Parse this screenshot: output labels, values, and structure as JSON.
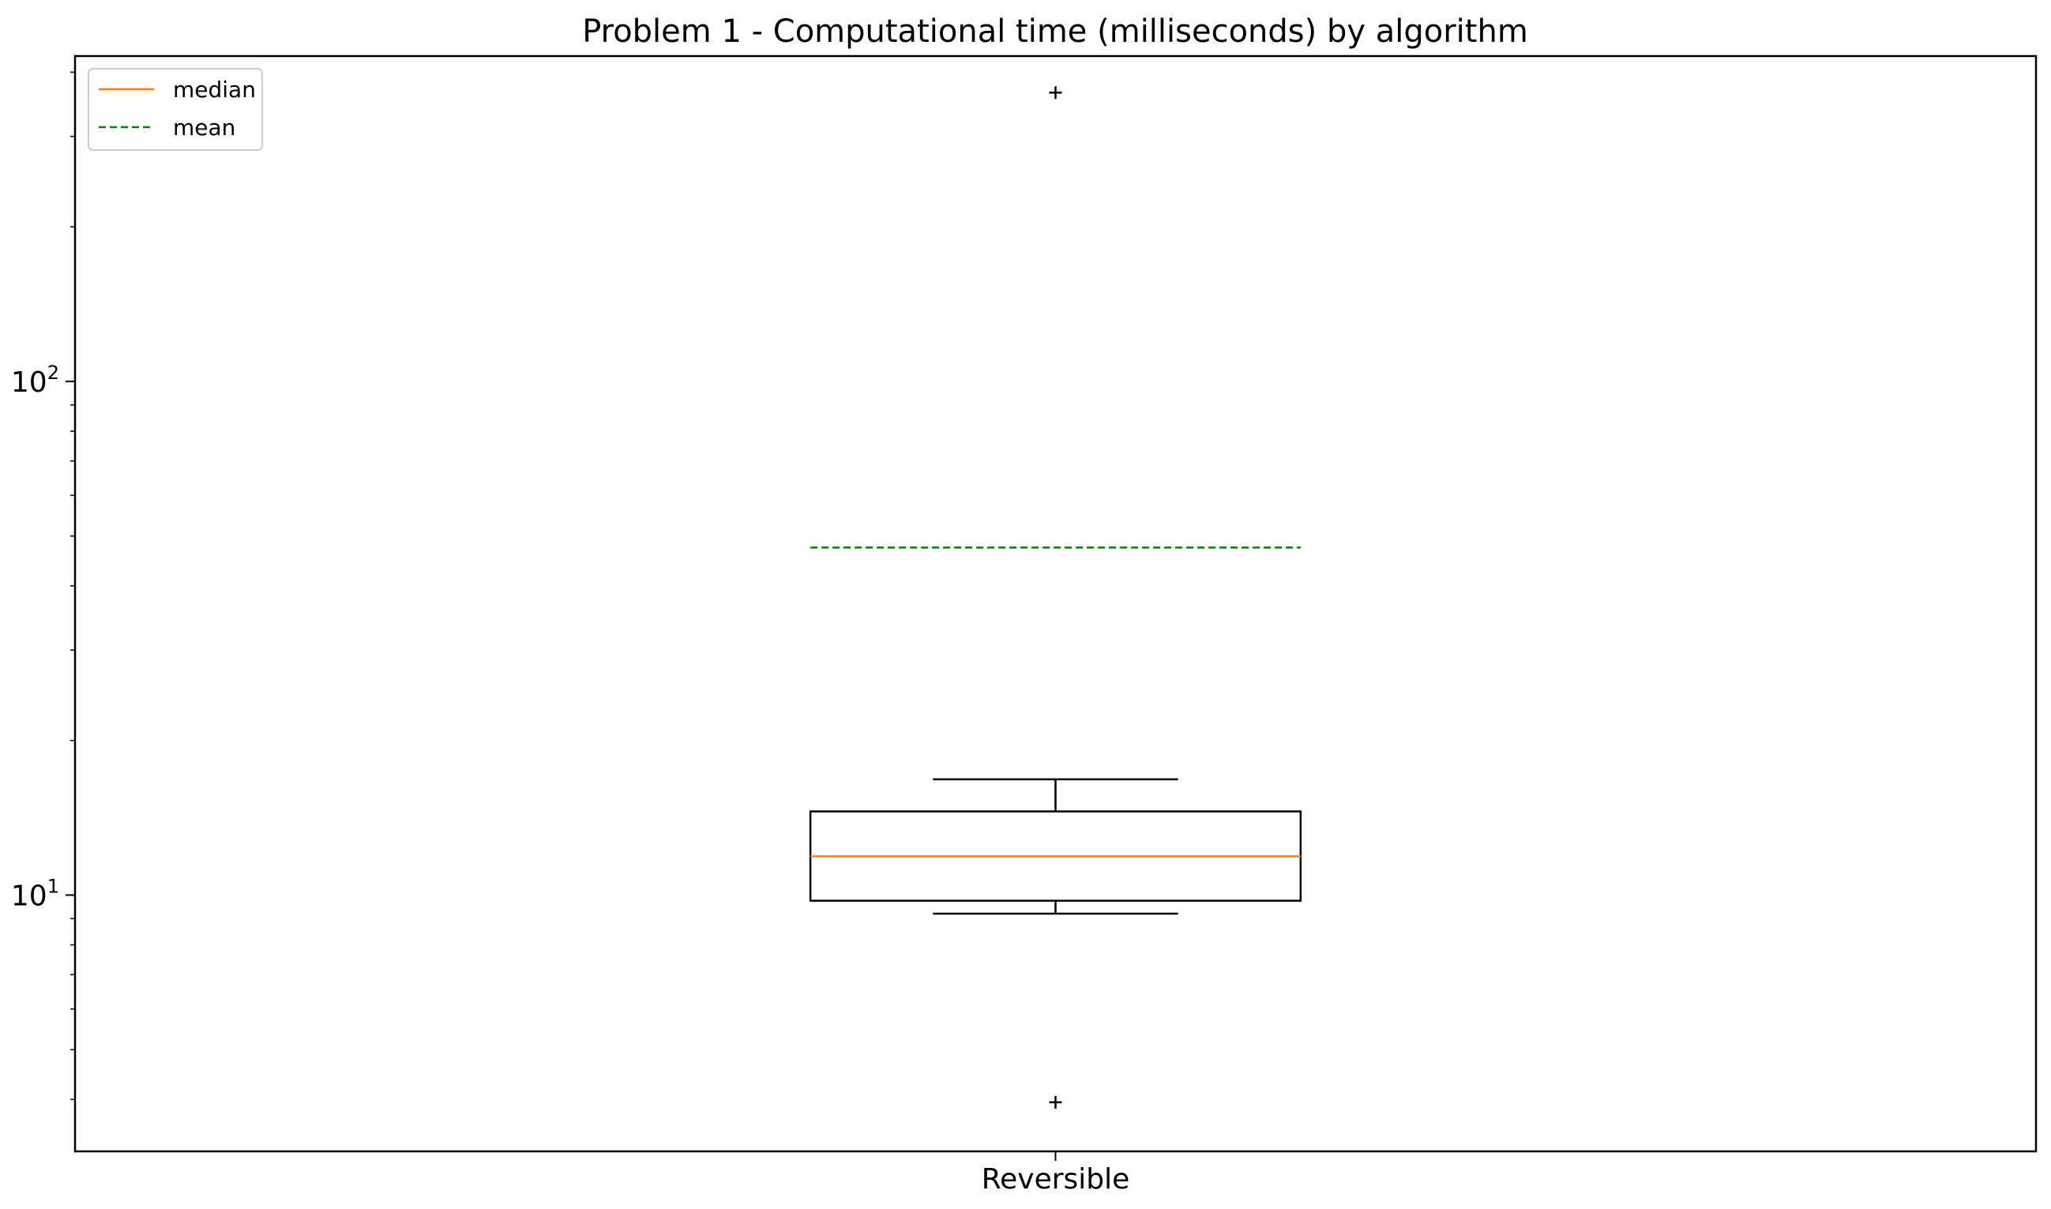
{
  "chart_data": {
    "type": "box",
    "title": "Problem 1 - Computational time (milliseconds) by algorithm",
    "xlabel": "",
    "ylabel": "",
    "yscale": "log",
    "ylim": [
      3.17,
      430
    ],
    "categories": [
      "Reversible"
    ],
    "yticks": [
      {
        "value": 10,
        "base": "10",
        "exp": "1"
      },
      {
        "value": 100,
        "base": "10",
        "exp": "2"
      }
    ],
    "boxes": [
      {
        "category": "Reversible",
        "whisker_low": 9.2,
        "q1": 9.75,
        "median": 11.9,
        "q3": 14.55,
        "whisker_high": 16.8,
        "mean": 47.5,
        "outliers": [
          3.95,
          365
        ]
      }
    ],
    "legend": {
      "position": "top-left",
      "entries": [
        {
          "label": "median",
          "style": "solid",
          "color": "#ff7f0e"
        },
        {
          "label": "mean",
          "style": "dashed",
          "color": "#008000"
        }
      ]
    },
    "grid": false,
    "colors": {
      "box": "#000000",
      "median": "#ff7f0e",
      "mean": "#008000"
    }
  }
}
